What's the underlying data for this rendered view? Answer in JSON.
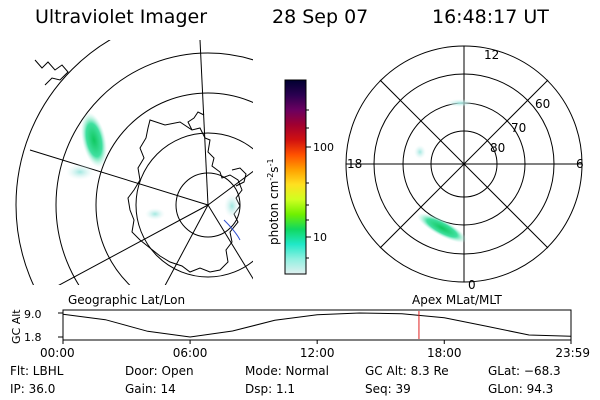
{
  "header": {
    "instrument": "Ultraviolet Imager",
    "date": "28 Sep 07",
    "time": "16:48:17 UT"
  },
  "colorbar": {
    "label": "photon cm",
    "label_sup1": "-2",
    "label_s": "s",
    "label_sup2": "-1",
    "ticks": [
      "100",
      "10"
    ],
    "colors": [
      "#000030",
      "#2a0050",
      "#6a0060",
      "#a00030",
      "#d01010",
      "#ff5000",
      "#ffa000",
      "#ffe020",
      "#d0ff20",
      "#70f000",
      "#10d860",
      "#20e8c8",
      "#90f0e0",
      "#e0f0f0"
    ]
  },
  "geo_panel": {
    "label": "Geographic Lat/Lon"
  },
  "mag_panel": {
    "label": "Apex MLat/MLT",
    "mlt_labels": [
      "12",
      "18",
      "6",
      "0"
    ],
    "lat_labels": [
      "60",
      "70",
      "80"
    ]
  },
  "timeline": {
    "ylabel": "GC Alt",
    "ymax_label": "9.0",
    "ymin_label": "1.8",
    "xticks": [
      "00:00",
      "06:00",
      "12:00",
      "18:00",
      "23:59"
    ]
  },
  "status": {
    "row1": {
      "flt": "Flt: LBHL",
      "door": "Door: Open",
      "mode": "Mode: Normal",
      "gcalt": "GC Alt: 8.3 Re",
      "glat": "GLat: −68.3"
    },
    "row2": {
      "ip": "IP: 36.0",
      "gain": "Gain: 14",
      "dsp": "Dsp:    1.1",
      "seq": "Seq: 39",
      "glon": "GLon:  94.3"
    }
  },
  "chart_data": {
    "type": "line",
    "title": "",
    "xlabel": "",
    "ylabel": "GC Alt",
    "x": [
      "00:00",
      "02:00",
      "04:00",
      "06:00",
      "08:00",
      "10:00",
      "12:00",
      "14:00",
      "16:00",
      "18:00",
      "20:00",
      "22:00",
      "23:59"
    ],
    "series": [
      {
        "values": [
          8.6,
          7.0,
          3.5,
          1.8,
          3.6,
          6.8,
          8.5,
          9.0,
          8.8,
          7.6,
          5.0,
          2.4,
          2.0
        ]
      }
    ],
    "xticks": [
      "00:00",
      "06:00",
      "12:00",
      "18:00",
      "23:59"
    ],
    "ylim": [
      1.8,
      9.0
    ],
    "current_time_marker": "16:48:17"
  }
}
